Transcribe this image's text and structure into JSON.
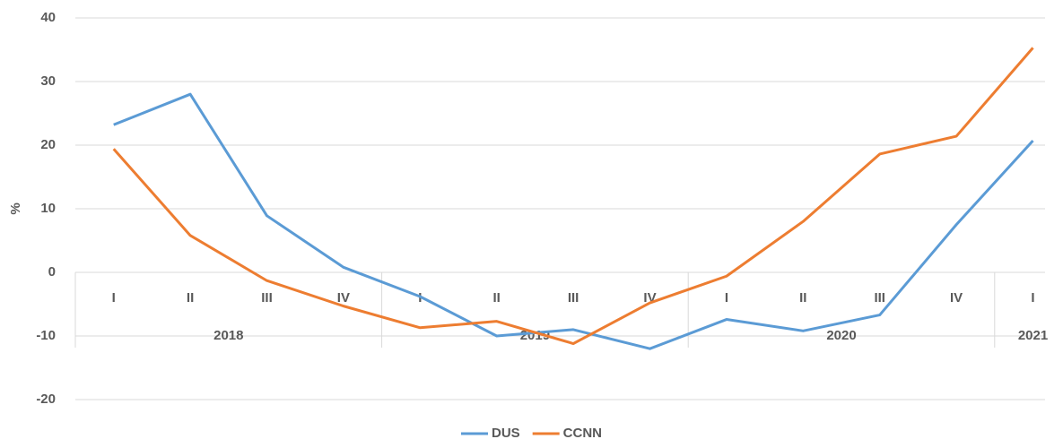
{
  "chart_data": {
    "type": "line",
    "y_label": "%",
    "categories": [
      "I",
      "II",
      "III",
      "IV",
      "I",
      "II",
      "III",
      "IV",
      "I",
      "II",
      "III",
      "IV",
      "I"
    ],
    "groups": [
      {
        "label": "2018",
        "count": 4
      },
      {
        "label": "2019",
        "count": 4
      },
      {
        "label": "2020",
        "count": 4
      },
      {
        "label": "2021",
        "count": 1
      }
    ],
    "series": [
      {
        "name": "DUS",
        "color": "#5b9bd5",
        "values": [
          23.2,
          28,
          8.9,
          0.8,
          -3.8,
          -10,
          -9,
          -12,
          -7.4,
          -9.2,
          -6.7,
          7.5,
          20.7
        ]
      },
      {
        "name": "CCNN",
        "color": "#ed7d31",
        "values": [
          19.4,
          5.8,
          -1.3,
          -5.3,
          -8.7,
          -7.7,
          -11.2,
          -4.8,
          -0.6,
          8,
          18.6,
          21.4,
          35.3
        ]
      }
    ],
    "ylim": [
      -20,
      40
    ],
    "yticks": [
      -20,
      -10,
      0,
      10,
      20,
      30,
      40
    ],
    "grid": true,
    "legend": "bottom"
  }
}
